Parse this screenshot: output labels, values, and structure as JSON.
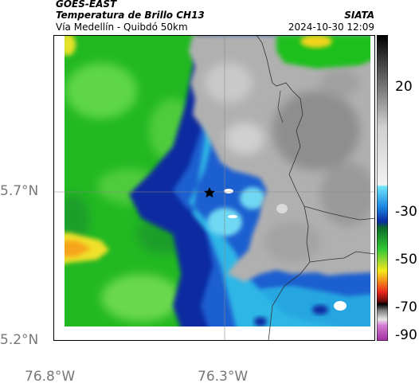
{
  "header": {
    "satellite": "GOES-EAST",
    "product": "Temperatura de Brillo CH13",
    "route": "Vía Medellín - Quibdó 50km",
    "source": "SIATA",
    "datetime": "2024-10-30 12:09"
  },
  "map": {
    "lat_ticks": [
      "5.7°N",
      "5.2°N"
    ],
    "lon_ticks": [
      "76.8°W",
      "76.3°W"
    ],
    "marker": "star-icon"
  },
  "colorbar": {
    "ticks": [
      "20",
      "-30",
      "-50",
      "-70",
      "-90"
    ],
    "colors": {
      "green": "#1fbf1f",
      "dark_blue": "#0a2a9e",
      "cyan": "#2fb6e6",
      "gray": "#b3b3b3",
      "yellow": "#f7e51a",
      "red": "#e8271d",
      "black": "#000000",
      "magenta": "#b63fb6"
    }
  }
}
